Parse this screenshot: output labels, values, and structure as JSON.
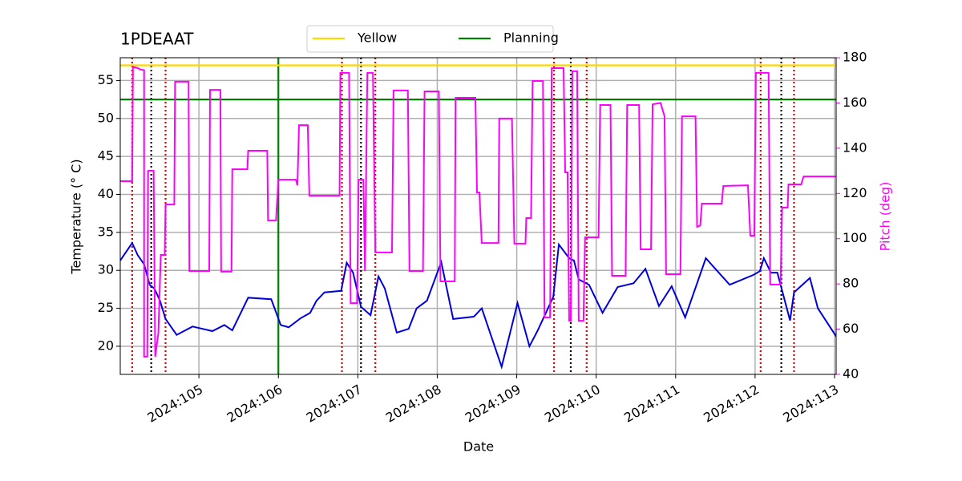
{
  "chart_data": {
    "type": "line",
    "title": "1PDEAAT",
    "xlabel": "Date",
    "ylabel": "Temperature (° C)",
    "y2label": "Pitch (deg)",
    "y2color": "#ff00ff",
    "xlim": [
      104.01,
      113.02
    ],
    "xticks": [
      {
        "value": 105,
        "label": "2024:105"
      },
      {
        "value": 106,
        "label": "2024:106"
      },
      {
        "value": 107,
        "label": "2024:107"
      },
      {
        "value": 108,
        "label": "2024:108"
      },
      {
        "value": 109,
        "label": "2024:109"
      },
      {
        "value": 110,
        "label": "2024:110"
      },
      {
        "value": 111,
        "label": "2024:111"
      },
      {
        "value": 112,
        "label": "2024:112"
      },
      {
        "value": 113,
        "label": "2024:113"
      }
    ],
    "ylim": [
      16.3,
      58
    ],
    "yticks": [
      20,
      25,
      30,
      35,
      40,
      45,
      50,
      55
    ],
    "y2lim": [
      40,
      180
    ],
    "y2ticks": [
      40,
      60,
      80,
      100,
      120,
      140,
      160,
      180
    ],
    "grid": true,
    "legend": "top",
    "hlines": [
      {
        "name": "Yellow",
        "color": "#ffd700",
        "value": 57
      },
      {
        "name": "Planning",
        "color": "#008000",
        "value": 52.5
      }
    ],
    "vlines": [
      {
        "color": "#008000",
        "style": "solid",
        "x": [
          106.0
        ]
      },
      {
        "color": "#dd0000",
        "style": "dotted",
        "x": [
          104.16,
          104.58,
          106.8,
          107.22,
          109.47,
          109.88,
          112.07,
          112.49
        ]
      },
      {
        "color": "#000000",
        "style": "dotted",
        "x": [
          104.4,
          107.04,
          109.68,
          112.33
        ]
      }
    ],
    "series": [
      {
        "color": "#0000dd",
        "x": [
          104.01,
          104.16,
          104.23,
          104.31,
          104.38,
          104.44,
          104.51,
          104.58,
          104.72,
          104.92,
          105.17,
          105.32,
          105.42,
          105.62,
          105.91,
          106.03,
          106.13,
          106.28,
          106.4,
          106.48,
          106.58,
          106.79,
          106.86,
          106.94,
          107.04,
          107.16,
          107.26,
          107.34,
          107.49,
          107.64,
          107.74,
          107.87,
          108.05,
          108.2,
          108.46,
          108.56,
          108.81,
          109.01,
          109.16,
          109.26,
          109.46,
          109.53,
          109.66,
          109.72,
          109.78,
          109.91,
          110.08,
          110.27,
          110.47,
          110.62,
          110.79,
          110.95,
          111.12,
          111.38,
          111.68,
          111.98,
          112.06,
          112.11,
          112.2,
          112.28,
          112.44,
          112.49,
          112.69,
          112.79,
          113.02
        ],
        "values": [
          31.3,
          33.6,
          32.0,
          30.8,
          28.1,
          27.6,
          26.0,
          23.6,
          21.5,
          22.6,
          22.0,
          22.8,
          22.1,
          26.4,
          26.2,
          22.8,
          22.5,
          23.7,
          24.4,
          26.0,
          27.1,
          27.3,
          31.0,
          29.7,
          25.2,
          24.1,
          29.2,
          27.6,
          21.8,
          22.3,
          25.0,
          26.0,
          31.1,
          23.6,
          23.9,
          25.0,
          17.3,
          25.7,
          20.0,
          22.0,
          26.5,
          33.4,
          31.6,
          31.3,
          28.8,
          28.1,
          24.4,
          27.8,
          28.3,
          30.2,
          25.3,
          27.9,
          23.8,
          31.6,
          28.1,
          29.4,
          29.9,
          31.6,
          29.7,
          29.7,
          23.4,
          27.1,
          29.0,
          25.0,
          21.3
        ]
      },
      {
        "color": "#ff00ff",
        "axis": "y2",
        "x": [
          104.01,
          104.16,
          104.17,
          104.23,
          104.27,
          104.31,
          104.31,
          104.35,
          104.36,
          104.43,
          104.45,
          104.49,
          104.52,
          104.57,
          104.58,
          104.69,
          104.7,
          104.87,
          104.88,
          105.13,
          105.14,
          105.27,
          105.28,
          105.41,
          105.42,
          105.61,
          105.62,
          105.86,
          105.87,
          105.97,
          106.0,
          106.22,
          106.24,
          106.26,
          106.37,
          106.39,
          106.77,
          106.78,
          106.89,
          106.91,
          106.99,
          107.01,
          107.07,
          107.09,
          107.12,
          107.19,
          107.22,
          107.43,
          107.45,
          107.63,
          107.65,
          107.82,
          107.84,
          108.02,
          108.04,
          108.22,
          108.23,
          108.48,
          108.5,
          108.53,
          108.56,
          108.77,
          108.78,
          108.94,
          108.97,
          109.11,
          109.12,
          109.18,
          109.2,
          109.33,
          109.35,
          109.42,
          109.44,
          109.59,
          109.61,
          109.64,
          109.66,
          109.68,
          109.7,
          109.76,
          109.78,
          109.84,
          109.86,
          110.03,
          110.05,
          110.18,
          110.2,
          110.37,
          110.39,
          110.54,
          110.56,
          110.69,
          110.71,
          110.81,
          110.86,
          110.88,
          111.06,
          111.08,
          111.25,
          111.27,
          111.31,
          111.33,
          111.58,
          111.6,
          111.91,
          111.94,
          111.99,
          112.01,
          112.17,
          112.19,
          112.32,
          112.34,
          112.41,
          112.42,
          112.58,
          112.61,
          113.02
        ],
        "values": [
          125.4,
          125.4,
          176,
          175.4,
          174.7,
          174.5,
          47.8,
          47.8,
          130,
          130,
          47.8,
          58.4,
          92.8,
          92.8,
          115.1,
          115.1,
          169.4,
          169.4,
          85.7,
          85.7,
          165.8,
          165.8,
          85.4,
          85.4,
          130.7,
          130.7,
          138.9,
          138.9,
          108,
          108,
          126.1,
          126.1,
          123.6,
          150.2,
          150.2,
          119,
          119,
          173.3,
          173.3,
          71.5,
          71.5,
          126.1,
          126.1,
          85.7,
          173.3,
          173.3,
          93.9,
          93.9,
          165.5,
          165.5,
          85.7,
          85.7,
          165.1,
          165.1,
          81.1,
          81.1,
          162.3,
          162.3,
          120.4,
          120.4,
          98.1,
          98.1,
          153.1,
          153.1,
          97.8,
          97.8,
          109.1,
          109.1,
          169.7,
          169.7,
          65.2,
          65.2,
          175.4,
          175.4,
          129.3,
          129.3,
          63.7,
          63.7,
          174,
          174,
          63.7,
          63.7,
          100.6,
          100.6,
          159.1,
          159.1,
          83.6,
          83.6,
          159.1,
          159.1,
          95.3,
          95.3,
          159.4,
          160,
          154.1,
          84.3,
          84.3,
          154.1,
          154.1,
          105.2,
          105.8,
          115.5,
          115.5,
          123.3,
          123.6,
          101.3,
          101.3,
          173.3,
          173.3,
          79.7,
          79.7,
          113.7,
          113.7,
          124,
          124,
          127.5,
          127.5
        ]
      }
    ]
  }
}
